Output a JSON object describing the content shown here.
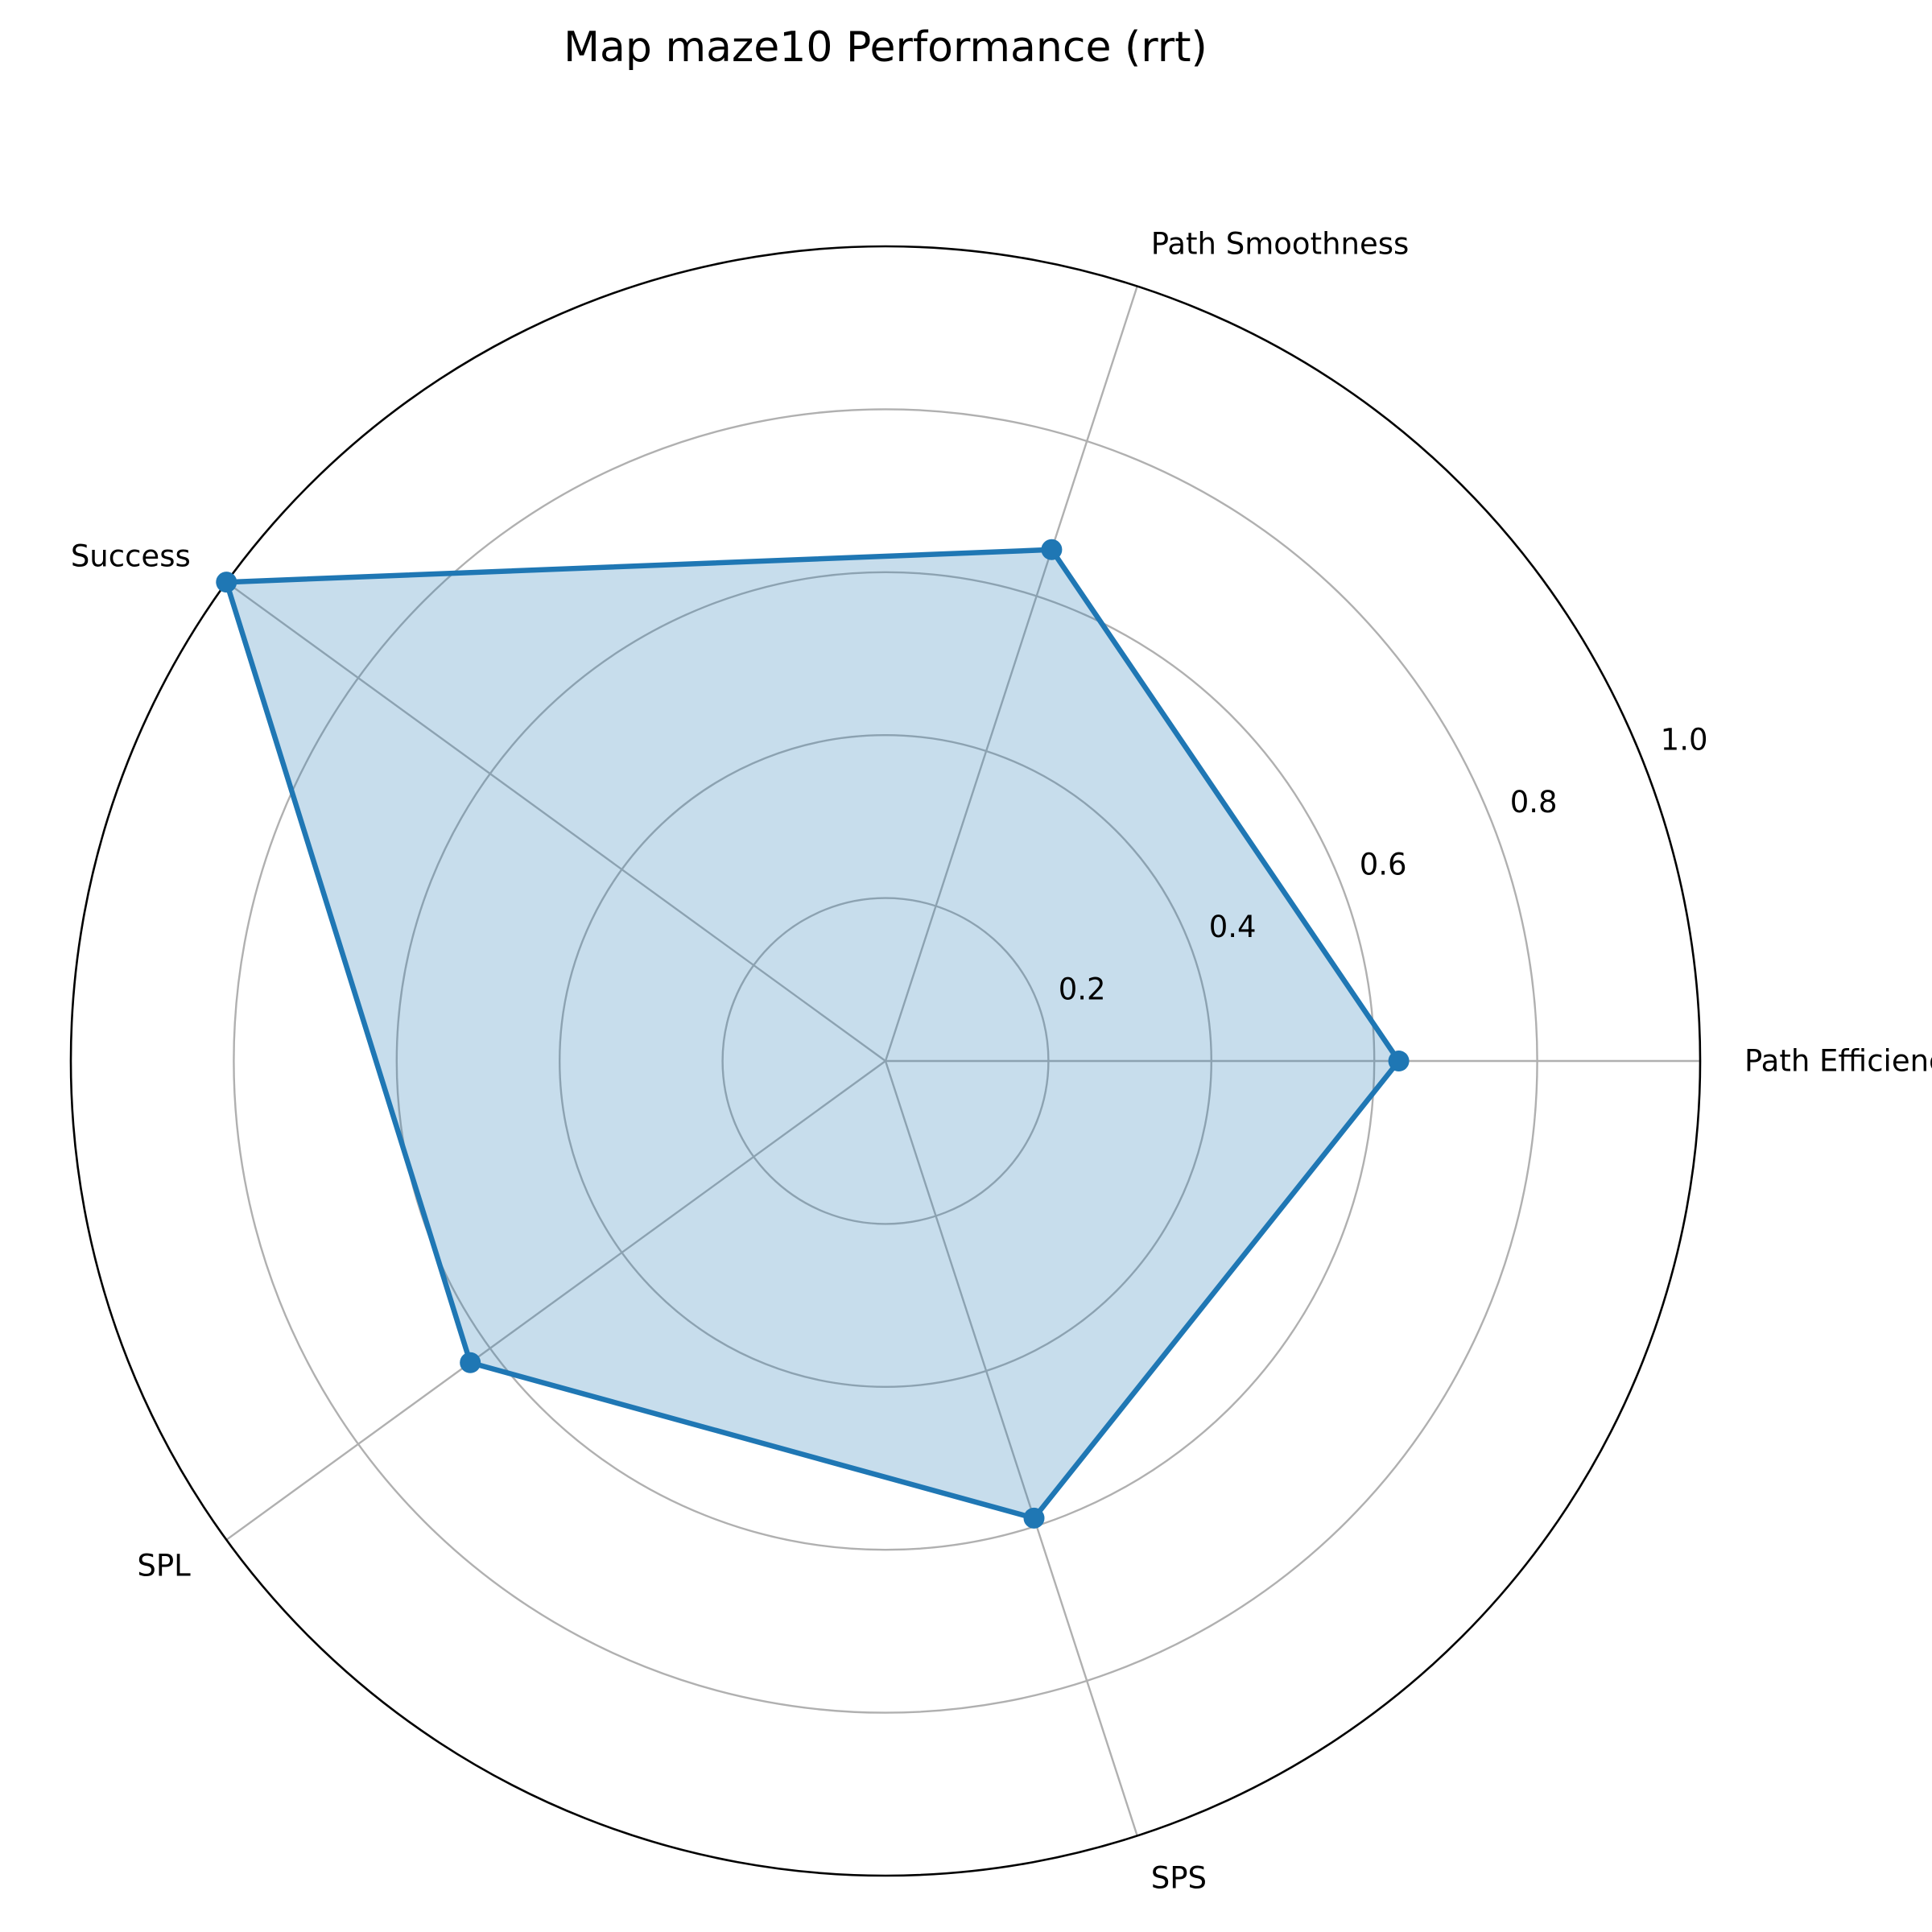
{
  "chart_data": {
    "type": "radar",
    "title": "Map maze10 Performance (rrt)",
    "axes": [
      "Path Efficiency",
      "Path Smoothness",
      "Success",
      "SPL",
      "SPS"
    ],
    "series": [
      {
        "values": [
          0.63,
          0.66,
          1.0,
          0.63,
          0.59
        ]
      }
    ],
    "rlim": [
      0,
      1.0
    ],
    "r_ticks": [
      0.2,
      0.4,
      0.6,
      0.8,
      1.0
    ],
    "r_tick_labels": [
      "0.2",
      "0.4",
      "0.6",
      "0.8",
      "1.0"
    ],
    "grid": true,
    "colors": {
      "line": "#1f77b4",
      "fill": "#1f77b4",
      "grid": "#b0b0b0",
      "frame": "#000000"
    }
  }
}
